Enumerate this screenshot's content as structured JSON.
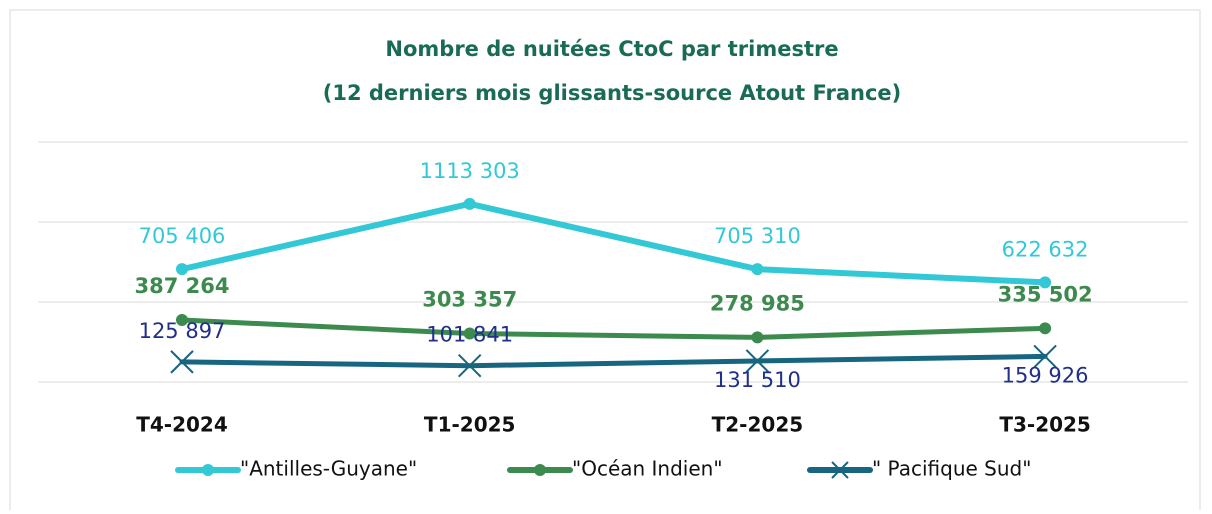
{
  "chart_data": {
    "type": "line",
    "title": "Nombre de nuitées CtoC par trimestre",
    "subtitle": "(12 derniers mois glissants-source Atout France)",
    "categories": [
      "T4-2024",
      "T1-2025",
      "T2-2025",
      "T3-2025"
    ],
    "series": [
      {
        "name": "\"Antilles-Guyane\"",
        "color": "#33c8d6",
        "marker": "circle",
        "values": [
          705406,
          1113303,
          705310,
          622632
        ],
        "value_labels": [
          "705 406",
          "1113 303",
          "705 310",
          "622 632"
        ]
      },
      {
        "name": "\"Océan Indien\"",
        "color": "#3d8a4f",
        "marker": "circle",
        "values": [
          387264,
          303357,
          278985,
          335502
        ],
        "value_labels": [
          "387 264",
          "303 357",
          "278 985",
          "335 502"
        ]
      },
      {
        "name": "\" Pacifique Sud\"",
        "color": "#17657f",
        "marker": "x",
        "values": [
          125897,
          101841,
          131510,
          159926
        ],
        "value_labels": [
          "125 897",
          "101 841",
          "131 510",
          "159 926"
        ]
      }
    ],
    "ylim": [
      0,
      1500000
    ],
    "yticks": [
      0,
      500000,
      1000000,
      1500000
    ],
    "grid": true,
    "legend": "bottom"
  }
}
